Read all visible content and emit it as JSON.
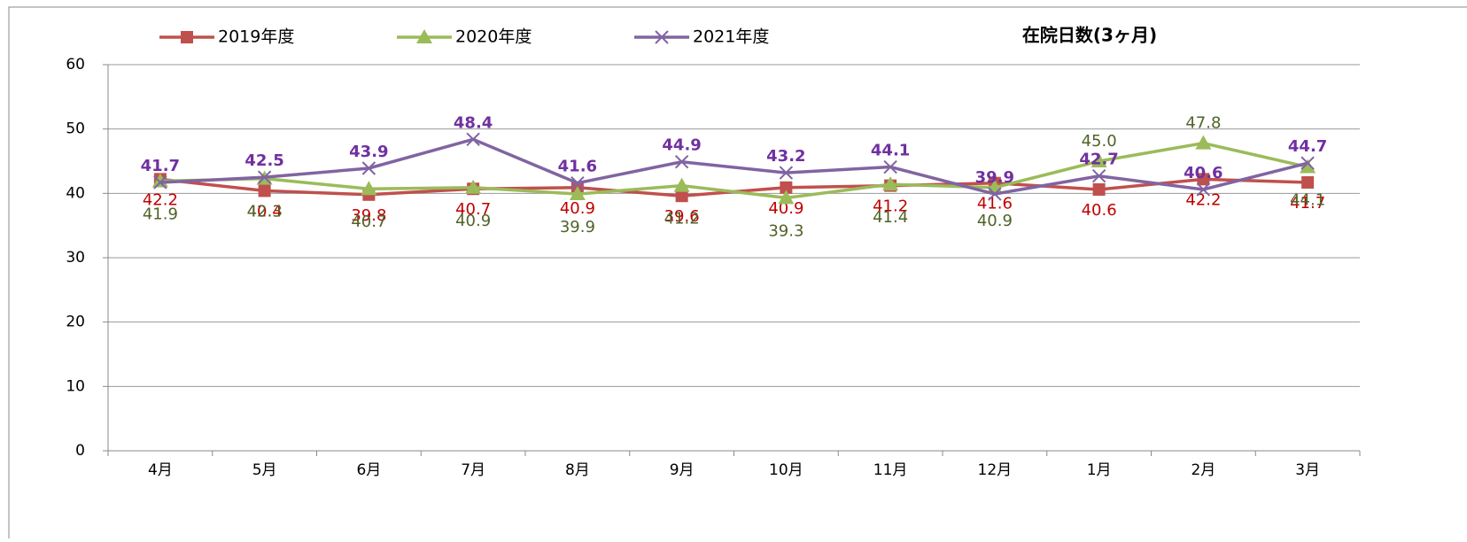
{
  "chart_data": {
    "type": "line",
    "title": "在院日数(3ヶ月)",
    "categories": [
      "4月",
      "5月",
      "6月",
      "7月",
      "8月",
      "9月",
      "10月",
      "11月",
      "12月",
      "1月",
      "2月",
      "3月"
    ],
    "series": [
      {
        "name": "2019年度",
        "color": "#c0504d",
        "values": [
          42.2,
          40.4,
          39.8,
          40.7,
          40.9,
          39.6,
          40.9,
          41.2,
          41.6,
          40.6,
          42.2,
          41.7
        ],
        "value_labels": [
          "42.2",
          "40.4",
          "39.8",
          "40.7",
          "40.9",
          "39.6",
          "40.9",
          "41.2",
          "41.6",
          "40.6",
          "42.2",
          "41.7"
        ]
      },
      {
        "name": "2020年度",
        "color": "#9bbb59",
        "values": [
          41.9,
          42.3,
          40.7,
          40.9,
          39.9,
          41.2,
          39.3,
          41.4,
          40.9,
          45.0,
          47.8,
          44.1
        ],
        "value_labels": [
          "41.9",
          "42.3",
          "40.7",
          "40.9",
          "39.9",
          "41.2",
          "39.3",
          "41.4",
          "40.9",
          "45.0",
          "47.8",
          "44.1"
        ]
      },
      {
        "name": "2021年度",
        "color": "#8064a2",
        "values": [
          41.7,
          42.5,
          43.9,
          48.4,
          41.6,
          44.9,
          43.2,
          44.1,
          39.9,
          42.7,
          40.6,
          44.7
        ],
        "value_labels": [
          "41.7",
          "42.5",
          "43.9",
          "48.4",
          "41.6",
          "44.9",
          "43.2",
          "44.1",
          "39.9",
          "42.7",
          "40.6",
          "44.7"
        ]
      }
    ],
    "ylim": [
      0,
      60
    ],
    "yticks": [
      0,
      10,
      20,
      30,
      40,
      50,
      60
    ],
    "grid": true
  }
}
